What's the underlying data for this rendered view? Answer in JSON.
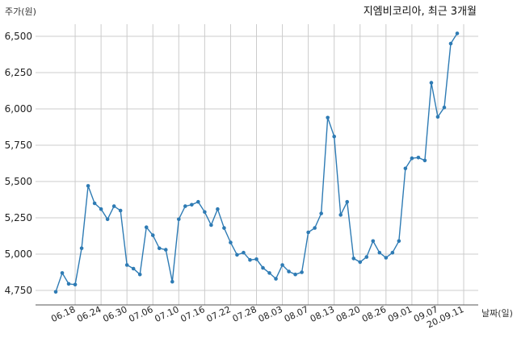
{
  "chart_data": {
    "type": "line",
    "title": "지엠비코리아, 최근 3개월",
    "xlabel": "날짜(일)",
    "ylabel": "주가(원)",
    "ylim": [
      4700,
      6600
    ],
    "yticks": [
      4750,
      5000,
      5250,
      5500,
      5750,
      6000,
      6250,
      6500
    ],
    "ytick_labels": [
      "4,750",
      "5,000",
      "5,250",
      "5,500",
      "5,750",
      "6,000",
      "6,250",
      "6,500"
    ],
    "grid": true,
    "color": "#2e7bb4",
    "xticks": [
      {
        "label": "06.18",
        "index": 3
      },
      {
        "label": "06.24",
        "index": 7
      },
      {
        "label": "06.30",
        "index": 11
      },
      {
        "label": "07.06",
        "index": 15
      },
      {
        "label": "07.10",
        "index": 19
      },
      {
        "label": "07.16",
        "index": 23
      },
      {
        "label": "07.22",
        "index": 27
      },
      {
        "label": "07.28",
        "index": 31
      },
      {
        "label": "08.03",
        "index": 35
      },
      {
        "label": "08.07",
        "index": 39
      },
      {
        "label": "08.13",
        "index": 43
      },
      {
        "label": "08.20",
        "index": 47
      },
      {
        "label": "08.26",
        "index": 51
      },
      {
        "label": "09.01",
        "index": 55
      },
      {
        "label": "09.07",
        "index": 59
      },
      {
        "label": "20.09.11",
        "index": 63
      }
    ],
    "series": [
      {
        "values": [
          4740,
          4870,
          4795,
          4790,
          5040,
          5470,
          5350,
          5310,
          5240,
          5330,
          5300,
          4925,
          4900,
          4860,
          5185,
          5130,
          5040,
          5030,
          4810,
          5240,
          5330,
          5340,
          5360,
          5290,
          5200,
          5310,
          5180,
          5080,
          4995,
          5010,
          4960,
          4965,
          4905,
          4870,
          4830,
          4925,
          4880,
          4860,
          4875,
          5150,
          5180,
          5280,
          5940,
          5810,
          5270,
          5360,
          4970,
          4945,
          4980,
          5090,
          5010,
          4975,
          5010,
          5090,
          5590,
          5660,
          5665,
          5645,
          6180,
          5945,
          6010,
          6450,
          6520
        ]
      }
    ]
  }
}
